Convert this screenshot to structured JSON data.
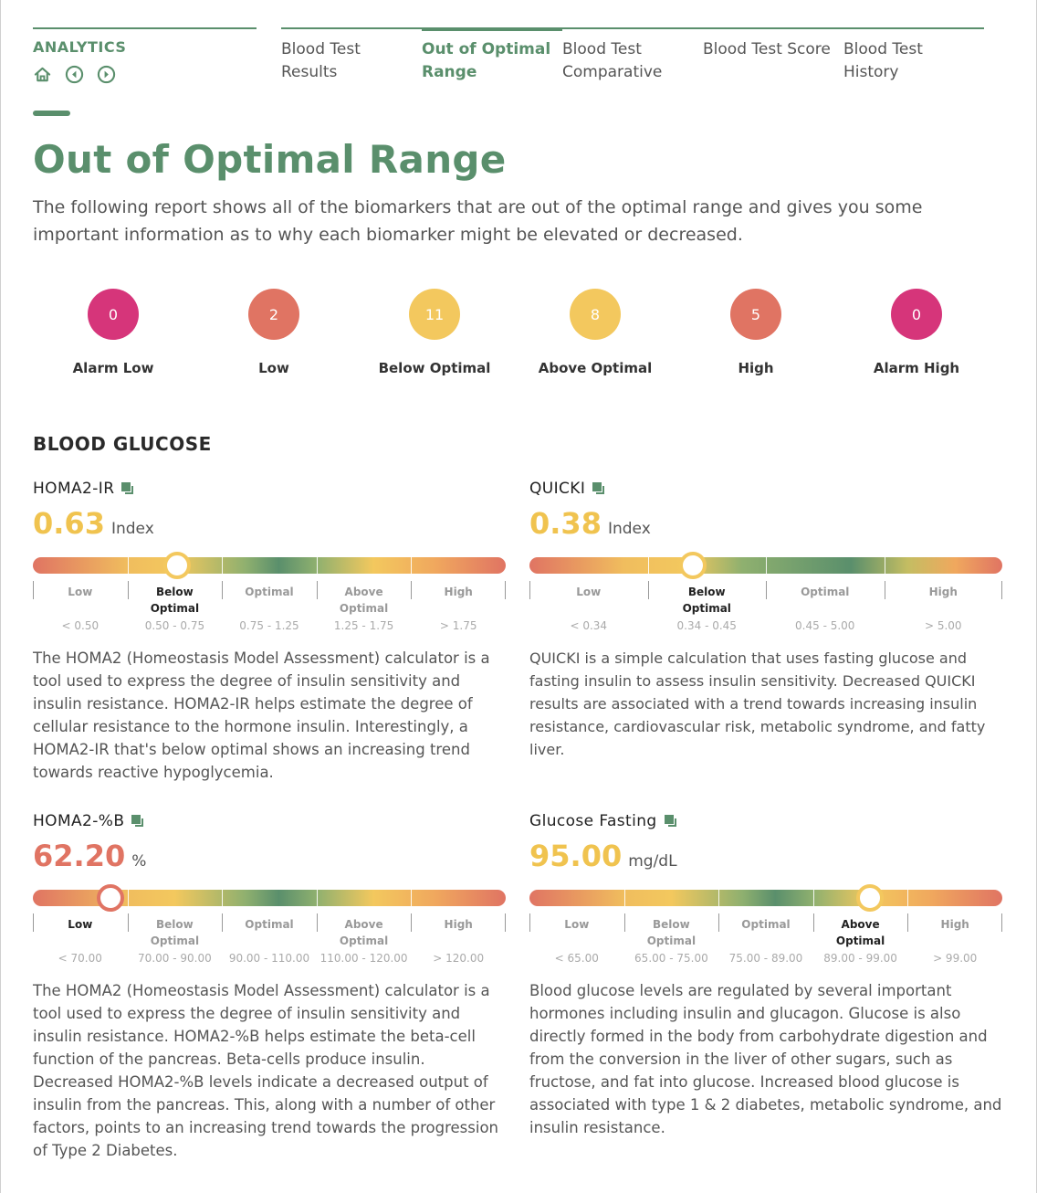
{
  "header": {
    "analytics_label": "ANALYTICS",
    "nav_icons": [
      "home-icon",
      "back-circle-icon",
      "forward-circle-icon"
    ]
  },
  "tabs": [
    {
      "line1": "Blood Test",
      "line2": "Results",
      "active": false
    },
    {
      "line1": "Out of Optimal",
      "line2": "Range",
      "active": true
    },
    {
      "line1": "Blood Test",
      "line2": "Comparative",
      "active": false
    },
    {
      "line1": "Blood Test Score",
      "line2": "",
      "active": false
    },
    {
      "line1": "Blood Test",
      "line2": "History",
      "active": false
    }
  ],
  "page": {
    "title": "Out of Optimal Range",
    "intro": "The following report shows all of the biomarkers that are out of the optimal range and gives you some important information as to why each biomarker might be elevated or decreased."
  },
  "counts": [
    {
      "value": "0",
      "label": "Alarm Low",
      "color": "#d6357a"
    },
    {
      "value": "2",
      "label": "Low",
      "color": "#e07463"
    },
    {
      "value": "11",
      "label": "Below Optimal",
      "color": "#f3c85e"
    },
    {
      "value": "8",
      "label": "Above Optimal",
      "color": "#f3c85e"
    },
    {
      "value": "5",
      "label": "High",
      "color": "#e07463"
    },
    {
      "value": "0",
      "label": "Alarm High",
      "color": "#d6357a"
    }
  ],
  "section": {
    "title": "BLOOD GLUCOSE"
  },
  "cards": [
    {
      "name": "HOMA2-IR",
      "value": "0.63",
      "unit": "Index",
      "value_color": "#f0c34f",
      "status": "Below Optimal",
      "marker_fraction": 0.305,
      "segments": [
        {
          "line1": "Low",
          "line2": "",
          "range": "< 0.50"
        },
        {
          "line1": "Below",
          "line2": "Optimal",
          "range": "0.50 - 0.75"
        },
        {
          "line1": "Optimal",
          "line2": "",
          "range": "0.75 - 1.25"
        },
        {
          "line1": "Above",
          "line2": "Optimal",
          "range": "1.25 - 1.75"
        },
        {
          "line1": "High",
          "line2": "",
          "range": "> 1.75"
        }
      ],
      "current_index": 1,
      "description": "The HOMA2 (Homeostasis Model Assessment) calculator is a tool used to express the degree of insulin sensitivity and insulin resistance. HOMA2-IR helps estimate the degree of cellular resistance to the hormone insulin. Interestingly, a HOMA2-IR that's below optimal shows an increasing trend towards reactive hypoglycemia."
    },
    {
      "name": "QUICKI",
      "value": "0.38",
      "unit": "Index",
      "value_color": "#f0c34f",
      "status": "Below Optimal",
      "marker_fraction": 0.345,
      "segments": [
        {
          "line1": "Low",
          "line2": "",
          "range": "< 0.34"
        },
        {
          "line1": "Below",
          "line2": "Optimal",
          "range": "0.34 - 0.45"
        },
        {
          "line1": "Optimal",
          "line2": "",
          "range": "0.45 - 5.00"
        },
        {
          "line1": "High",
          "line2": "",
          "range": "> 5.00"
        }
      ],
      "current_index": 1,
      "description": "QUICKI is a simple calculation that uses fasting glucose and fasting insulin to assess insulin sensitivity. Decreased QUICKI results are associated with a trend towards increasing insulin resistance, cardiovascular risk, metabolic syndrome, and fatty liver."
    },
    {
      "name": "HOMA2-%B",
      "value": "62.20",
      "unit": "%",
      "value_color": "#e07463",
      "status": "Low",
      "marker_fraction": 0.165,
      "segments": [
        {
          "line1": "Low",
          "line2": "",
          "range": "< 70.00"
        },
        {
          "line1": "Below",
          "line2": "Optimal",
          "range": "70.00 - 90.00"
        },
        {
          "line1": "Optimal",
          "line2": "",
          "range": "90.00 - 110.00"
        },
        {
          "line1": "Above",
          "line2": "Optimal",
          "range": "110.00 - 120.00"
        },
        {
          "line1": "High",
          "line2": "",
          "range": "> 120.00"
        }
      ],
      "current_index": 0,
      "description": "The HOMA2 (Homeostasis Model Assessment) calculator is a tool used to express the degree of insulin sensitivity and insulin resistance. HOMA2-%B helps estimate the beta-cell function of the pancreas. Beta-cells produce insulin. Decreased HOMA2-%B levels indicate a decreased output of insulin from the pancreas. This, along with a number of other factors, points to an increasing trend towards the progression of Type 2 Diabetes."
    },
    {
      "name": "Glucose Fasting",
      "value": "95.00",
      "unit": "mg/dL",
      "value_color": "#f0c34f",
      "status": "Above Optimal",
      "marker_fraction": 0.72,
      "segments": [
        {
          "line1": "Low",
          "line2": "",
          "range": "< 65.00"
        },
        {
          "line1": "Below",
          "line2": "Optimal",
          "range": "65.00 - 75.00"
        },
        {
          "line1": "Optimal",
          "line2": "",
          "range": "75.00 - 89.00"
        },
        {
          "line1": "Above",
          "line2": "Optimal",
          "range": "89.00 - 99.00"
        },
        {
          "line1": "High",
          "line2": "",
          "range": "> 99.00"
        }
      ],
      "current_index": 3,
      "description": "Blood glucose levels are regulated by several important hormones including insulin and glucagon. Glucose is also directly formed in the body from carbohydrate digestion and from the conversion in the liver of other sugars, such as fructose, and fat into glucose. Increased blood glucose is associated with type 1 & 2 diabetes, metabolic syndrome, and insulin resistance."
    }
  ]
}
